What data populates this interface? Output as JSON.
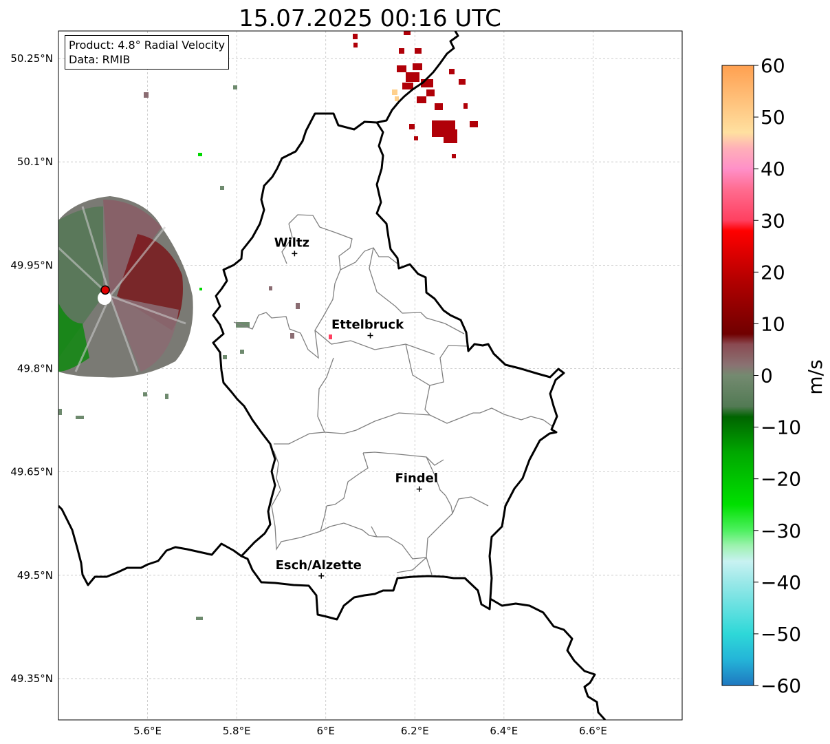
{
  "title": "15.07.2025 00:16 UTC",
  "info_box": {
    "product_line": "Product: 4.8° Radial Velocity",
    "data_line": "Data: RMIB"
  },
  "map": {
    "lon_range": [
      5.4,
      6.8
    ],
    "lat_range": [
      49.29,
      50.29
    ],
    "lon_ticks": [
      {
        "value": 5.6,
        "label": "5.6°E"
      },
      {
        "value": 5.8,
        "label": "5.8°E"
      },
      {
        "value": 6.0,
        "label": "6°E"
      },
      {
        "value": 6.2,
        "label": "6.2°E"
      },
      {
        "value": 6.4,
        "label": "6.4°E"
      },
      {
        "value": 6.6,
        "label": "6.6°E"
      }
    ],
    "lat_ticks": [
      {
        "value": 50.25,
        "label": "50.25°N"
      },
      {
        "value": 50.1,
        "label": "50.1°N"
      },
      {
        "value": 49.95,
        "label": "49.95°N"
      },
      {
        "value": 49.8,
        "label": "49.8°N"
      },
      {
        "value": 49.65,
        "label": "49.65°N"
      },
      {
        "value": 49.5,
        "label": "49.5°N"
      },
      {
        "value": 49.35,
        "label": "49.35°N"
      }
    ],
    "grid": "dashed",
    "cities": [
      {
        "name": "Wiltz",
        "lon": 5.93,
        "lat": 49.967
      },
      {
        "name": "Ettelbruck",
        "lon": 6.1,
        "lat": 49.848
      },
      {
        "name": "Findel",
        "lon": 6.21,
        "lat": 49.625
      },
      {
        "name": "Esch/Alzette",
        "lon": 5.99,
        "lat": 49.499
      }
    ],
    "radar_site": {
      "lon": 5.505,
      "lat": 49.914,
      "color": "#e00000"
    }
  },
  "colorbar": {
    "label": "m/s",
    "range": [
      -60,
      60
    ],
    "ticks": [
      {
        "value": 60,
        "label": "60"
      },
      {
        "value": 50,
        "label": "50"
      },
      {
        "value": 40,
        "label": "40"
      },
      {
        "value": 30,
        "label": "30"
      },
      {
        "value": 20,
        "label": "20"
      },
      {
        "value": 10,
        "label": "10"
      },
      {
        "value": 0,
        "label": "0"
      },
      {
        "value": -10,
        "label": "−10"
      },
      {
        "value": -20,
        "label": "−20"
      },
      {
        "value": -30,
        "label": "−30"
      },
      {
        "value": -40,
        "label": "−40"
      },
      {
        "value": -50,
        "label": "−50"
      },
      {
        "value": -60,
        "label": "−60"
      }
    ],
    "stops": [
      {
        "value": -60,
        "color": "#1f78c0"
      },
      {
        "value": -55,
        "color": "#24b4d8"
      },
      {
        "value": -50,
        "color": "#2ed8d8"
      },
      {
        "value": -40,
        "color": "#9ae8e8"
      },
      {
        "value": -36,
        "color": "#c8f2f2"
      },
      {
        "value": -33,
        "color": "#9ef2b0"
      },
      {
        "value": -30,
        "color": "#4ef060"
      },
      {
        "value": -25,
        "color": "#00e000"
      },
      {
        "value": -15,
        "color": "#00a800"
      },
      {
        "value": -8,
        "color": "#006400"
      },
      {
        "value": -6,
        "color": "#527a54"
      },
      {
        "value": 0,
        "color": "#748a70"
      },
      {
        "value": 2,
        "color": "#8a7272"
      },
      {
        "value": 6,
        "color": "#8a4a52"
      },
      {
        "value": 8,
        "color": "#700000"
      },
      {
        "value": 18,
        "color": "#b00000"
      },
      {
        "value": 28,
        "color": "#ff0000"
      },
      {
        "value": 30,
        "color": "#ff4060"
      },
      {
        "value": 36,
        "color": "#ff6c90"
      },
      {
        "value": 40,
        "color": "#ff90c8"
      },
      {
        "value": 44,
        "color": "#ffb0b8"
      },
      {
        "value": 47,
        "color": "#ffe0a0"
      },
      {
        "value": 55,
        "color": "#ffb870"
      },
      {
        "value": 60,
        "color": "#ffa050"
      }
    ]
  }
}
